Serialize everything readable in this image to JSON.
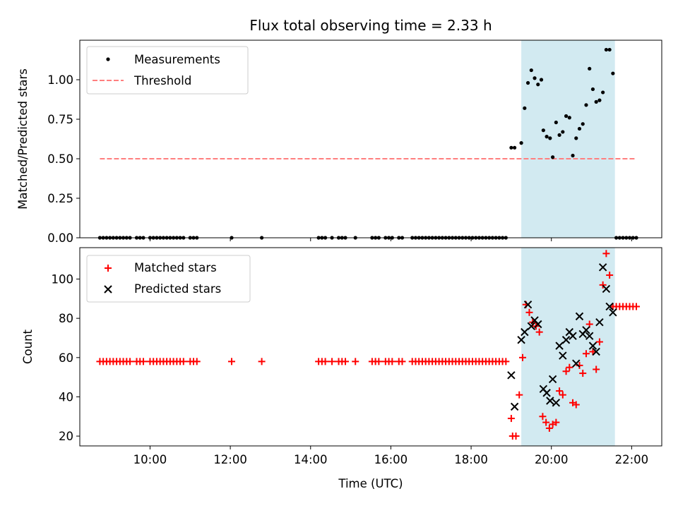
{
  "chart_data": [
    {
      "type": "scatter",
      "title": "Flux total observing time = 2.33 h",
      "xlabel": "",
      "ylabel": "Matched/Predicted stars",
      "xlim": [
        "08:15",
        "22:45"
      ],
      "ylim": [
        0,
        1.25
      ],
      "yticks": [
        0.0,
        0.25,
        0.5,
        0.75,
        1.0
      ],
      "ytick_labels": [
        "0.00",
        "0.25",
        "0.50",
        "0.75",
        "1.00"
      ],
      "highlight_span": [
        "19:15",
        "21:35"
      ],
      "highlight_color": "#add8e6",
      "legend_position": "upper left",
      "series": [
        {
          "name": "Measurements",
          "kind": "scatter",
          "color": "#000000",
          "points": [
            [
              "08:45",
              0
            ],
            [
              "08:50",
              0
            ],
            [
              "08:55",
              0
            ],
            [
              "09:00",
              0
            ],
            [
              "09:05",
              0
            ],
            [
              "09:10",
              0
            ],
            [
              "09:15",
              0
            ],
            [
              "09:20",
              0
            ],
            [
              "09:25",
              0
            ],
            [
              "09:30",
              0
            ],
            [
              "09:40",
              0
            ],
            [
              "09:45",
              0
            ],
            [
              "09:50",
              0
            ],
            [
              "10:00",
              0
            ],
            [
              "10:05",
              0
            ],
            [
              "10:10",
              0
            ],
            [
              "10:15",
              0
            ],
            [
              "10:20",
              0
            ],
            [
              "10:25",
              0
            ],
            [
              "10:30",
              0
            ],
            [
              "10:35",
              0
            ],
            [
              "10:40",
              0
            ],
            [
              "10:45",
              0
            ],
            [
              "10:50",
              0
            ],
            [
              "11:00",
              0
            ],
            [
              "11:05",
              0
            ],
            [
              "11:10",
              0
            ],
            [
              "12:02",
              0
            ],
            [
              "12:47",
              0
            ],
            [
              "14:12",
              0
            ],
            [
              "14:17",
              0
            ],
            [
              "14:22",
              0
            ],
            [
              "14:32",
              0
            ],
            [
              "14:42",
              0
            ],
            [
              "14:47",
              0
            ],
            [
              "14:52",
              0
            ],
            [
              "15:07",
              0
            ],
            [
              "15:32",
              0
            ],
            [
              "15:37",
              0
            ],
            [
              "15:42",
              0
            ],
            [
              "15:52",
              0
            ],
            [
              "15:57",
              0
            ],
            [
              "16:02",
              0
            ],
            [
              "16:12",
              0
            ],
            [
              "16:17",
              0
            ],
            [
              "16:32",
              0
            ],
            [
              "16:37",
              0
            ],
            [
              "16:42",
              0
            ],
            [
              "16:47",
              0
            ],
            [
              "16:52",
              0
            ],
            [
              "16:57",
              0
            ],
            [
              "17:02",
              0
            ],
            [
              "17:07",
              0
            ],
            [
              "17:12",
              0
            ],
            [
              "17:17",
              0
            ],
            [
              "17:22",
              0
            ],
            [
              "17:27",
              0
            ],
            [
              "17:32",
              0
            ],
            [
              "17:37",
              0
            ],
            [
              "17:42",
              0
            ],
            [
              "17:47",
              0
            ],
            [
              "17:52",
              0
            ],
            [
              "17:57",
              0
            ],
            [
              "18:02",
              0
            ],
            [
              "18:07",
              0
            ],
            [
              "18:12",
              0
            ],
            [
              "18:17",
              0
            ],
            [
              "18:22",
              0
            ],
            [
              "18:27",
              0
            ],
            [
              "18:32",
              0
            ],
            [
              "18:37",
              0
            ],
            [
              "18:42",
              0
            ],
            [
              "18:47",
              0
            ],
            [
              "18:52",
              0
            ],
            [
              "19:00",
              0.57
            ],
            [
              "19:05",
              0.57
            ],
            [
              "19:15",
              0.6
            ],
            [
              "19:20",
              0.82
            ],
            [
              "19:25",
              0.98
            ],
            [
              "19:30",
              1.06
            ],
            [
              "19:35",
              1.01
            ],
            [
              "19:40",
              0.97
            ],
            [
              "19:45",
              1.0
            ],
            [
              "19:48",
              0.68
            ],
            [
              "19:53",
              0.64
            ],
            [
              "19:58",
              0.63
            ],
            [
              "20:02",
              0.51
            ],
            [
              "20:07",
              0.73
            ],
            [
              "20:12",
              0.65
            ],
            [
              "20:17",
              0.67
            ],
            [
              "20:22",
              0.77
            ],
            [
              "20:27",
              0.76
            ],
            [
              "20:32",
              0.52
            ],
            [
              "20:37",
              0.63
            ],
            [
              "20:42",
              0.69
            ],
            [
              "20:47",
              0.72
            ],
            [
              "20:52",
              0.84
            ],
            [
              "20:57",
              1.07
            ],
            [
              "21:02",
              0.94
            ],
            [
              "21:07",
              0.86
            ],
            [
              "21:12",
              0.87
            ],
            [
              "21:17",
              0.92
            ],
            [
              "21:22",
              1.19
            ],
            [
              "21:27",
              1.19
            ],
            [
              "21:32",
              1.04
            ],
            [
              "21:37",
              0
            ],
            [
              "21:42",
              0
            ],
            [
              "21:47",
              0
            ],
            [
              "21:52",
              0
            ],
            [
              "21:57",
              0
            ],
            [
              "22:02",
              0
            ],
            [
              "22:07",
              0
            ]
          ]
        },
        {
          "name": "Threshold",
          "kind": "dashed-line",
          "color": "#ff7f7f",
          "points": [
            [
              "08:45",
              0.5
            ],
            [
              "22:05",
              0.5
            ]
          ]
        }
      ]
    },
    {
      "type": "scatter",
      "title": "",
      "xlabel": "Time (UTC)",
      "ylabel": "Count",
      "xlim": [
        "08:15",
        "22:45"
      ],
      "ylim": [
        15,
        116
      ],
      "yticks": [
        20,
        40,
        60,
        80,
        100
      ],
      "ytick_labels": [
        "20",
        "40",
        "60",
        "80",
        "100"
      ],
      "xticks": [
        "10:00",
        "12:00",
        "14:00",
        "16:00",
        "18:00",
        "20:00",
        "22:00"
      ],
      "highlight_span": [
        "19:15",
        "21:35"
      ],
      "highlight_color": "#add8e6",
      "legend_position": "upper left",
      "series": [
        {
          "name": "Matched stars",
          "kind": "plus",
          "color": "#ff0000",
          "points": [
            [
              "08:45",
              58
            ],
            [
              "08:50",
              58
            ],
            [
              "08:55",
              58
            ],
            [
              "09:00",
              58
            ],
            [
              "09:05",
              58
            ],
            [
              "09:10",
              58
            ],
            [
              "09:15",
              58
            ],
            [
              "09:20",
              58
            ],
            [
              "09:25",
              58
            ],
            [
              "09:30",
              58
            ],
            [
              "09:40",
              58
            ],
            [
              "09:45",
              58
            ],
            [
              "09:50",
              58
            ],
            [
              "10:00",
              58
            ],
            [
              "10:05",
              58
            ],
            [
              "10:10",
              58
            ],
            [
              "10:15",
              58
            ],
            [
              "10:20",
              58
            ],
            [
              "10:25",
              58
            ],
            [
              "10:30",
              58
            ],
            [
              "10:35",
              58
            ],
            [
              "10:40",
              58
            ],
            [
              "10:45",
              58
            ],
            [
              "10:50",
              58
            ],
            [
              "11:00",
              58
            ],
            [
              "11:05",
              58
            ],
            [
              "11:10",
              58
            ],
            [
              "12:02",
              58
            ],
            [
              "12:47",
              58
            ],
            [
              "14:12",
              58
            ],
            [
              "14:17",
              58
            ],
            [
              "14:22",
              58
            ],
            [
              "14:32",
              58
            ],
            [
              "14:42",
              58
            ],
            [
              "14:47",
              58
            ],
            [
              "14:52",
              58
            ],
            [
              "15:07",
              58
            ],
            [
              "15:32",
              58
            ],
            [
              "15:37",
              58
            ],
            [
              "15:42",
              58
            ],
            [
              "15:52",
              58
            ],
            [
              "15:57",
              58
            ],
            [
              "16:02",
              58
            ],
            [
              "16:12",
              58
            ],
            [
              "16:17",
              58
            ],
            [
              "16:32",
              58
            ],
            [
              "16:37",
              58
            ],
            [
              "16:42",
              58
            ],
            [
              "16:47",
              58
            ],
            [
              "16:52",
              58
            ],
            [
              "16:57",
              58
            ],
            [
              "17:02",
              58
            ],
            [
              "17:07",
              58
            ],
            [
              "17:12",
              58
            ],
            [
              "17:17",
              58
            ],
            [
              "17:22",
              58
            ],
            [
              "17:27",
              58
            ],
            [
              "17:32",
              58
            ],
            [
              "17:37",
              58
            ],
            [
              "17:42",
              58
            ],
            [
              "17:47",
              58
            ],
            [
              "17:52",
              58
            ],
            [
              "17:57",
              58
            ],
            [
              "18:02",
              58
            ],
            [
              "18:07",
              58
            ],
            [
              "18:12",
              58
            ],
            [
              "18:17",
              58
            ],
            [
              "18:22",
              58
            ],
            [
              "18:27",
              58
            ],
            [
              "18:32",
              58
            ],
            [
              "18:37",
              58
            ],
            [
              "18:42",
              58
            ],
            [
              "18:47",
              58
            ],
            [
              "18:52",
              58
            ],
            [
              "19:00",
              29
            ],
            [
              "19:02",
              20
            ],
            [
              "19:07",
              20
            ],
            [
              "19:12",
              41
            ],
            [
              "19:17",
              60
            ],
            [
              "19:22",
              87
            ],
            [
              "19:27",
              83
            ],
            [
              "19:32",
              78
            ],
            [
              "19:37",
              76
            ],
            [
              "19:42",
              73
            ],
            [
              "19:47",
              30
            ],
            [
              "19:52",
              27
            ],
            [
              "19:57",
              24
            ],
            [
              "20:02",
              26
            ],
            [
              "20:07",
              27
            ],
            [
              "20:12",
              43
            ],
            [
              "20:17",
              41
            ],
            [
              "20:22",
              53
            ],
            [
              "20:27",
              55
            ],
            [
              "20:32",
              37
            ],
            [
              "20:37",
              36
            ],
            [
              "20:42",
              56
            ],
            [
              "20:47",
              52
            ],
            [
              "20:52",
              62
            ],
            [
              "20:57",
              77
            ],
            [
              "21:02",
              63
            ],
            [
              "21:07",
              54
            ],
            [
              "21:12",
              68
            ],
            [
              "21:17",
              97
            ],
            [
              "21:22",
              113
            ],
            [
              "21:27",
              102
            ],
            [
              "21:32",
              86
            ],
            [
              "21:37",
              86
            ],
            [
              "21:42",
              86
            ],
            [
              "21:47",
              86
            ],
            [
              "21:52",
              86
            ],
            [
              "21:57",
              86
            ],
            [
              "22:02",
              86
            ],
            [
              "22:07",
              86
            ]
          ]
        },
        {
          "name": "Predicted stars",
          "kind": "x",
          "color": "#000000",
          "points": [
            [
              "19:00",
              51
            ],
            [
              "19:05",
              35
            ],
            [
              "19:15",
              69
            ],
            [
              "19:20",
              73
            ],
            [
              "19:25",
              87
            ],
            [
              "19:30",
              76
            ],
            [
              "19:35",
              79
            ],
            [
              "19:40",
              77
            ],
            [
              "19:48",
              44
            ],
            [
              "19:53",
              42
            ],
            [
              "19:58",
              38
            ],
            [
              "20:02",
              49
            ],
            [
              "20:07",
              37
            ],
            [
              "20:12",
              66
            ],
            [
              "20:17",
              61
            ],
            [
              "20:22",
              69
            ],
            [
              "20:27",
              73
            ],
            [
              "20:32",
              71
            ],
            [
              "20:37",
              57
            ],
            [
              "20:42",
              81
            ],
            [
              "20:47",
              72
            ],
            [
              "20:52",
              74
            ],
            [
              "20:57",
              71
            ],
            [
              "21:02",
              66
            ],
            [
              "21:07",
              63
            ],
            [
              "21:12",
              78
            ],
            [
              "21:17",
              106
            ],
            [
              "21:22",
              95
            ],
            [
              "21:27",
              86
            ],
            [
              "21:32",
              83
            ]
          ]
        }
      ]
    }
  ]
}
